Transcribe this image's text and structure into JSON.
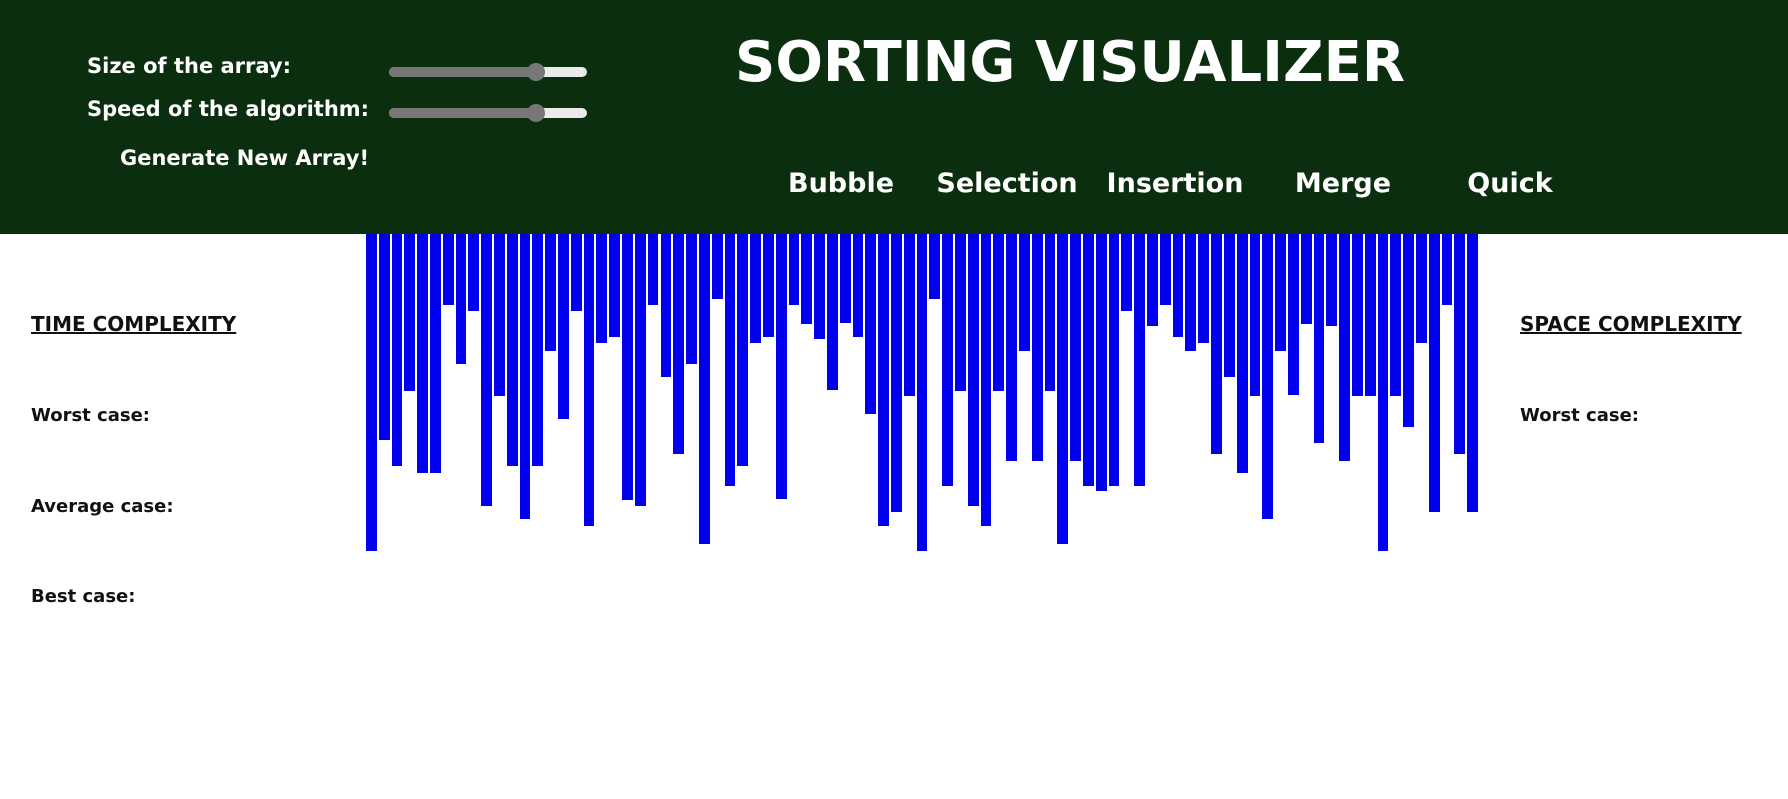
{
  "controls": {
    "size_label": "Size of the array:",
    "speed_label": "Speed of the algorithm:",
    "size_slider_value": 0.74,
    "speed_slider_value": 0.74,
    "generate_label": "Generate New Array!"
  },
  "header": {
    "title": "SORTING VISUALIZER",
    "algorithms": [
      {
        "label": "Bubble"
      },
      {
        "label": "Selection"
      },
      {
        "label": "Insertion"
      },
      {
        "label": "Merge"
      },
      {
        "label": "Quick"
      }
    ]
  },
  "time_complexity": {
    "heading": "TIME COMPLEXITY",
    "worst": "Worst case:",
    "average": "Average case:",
    "best": "Best case:"
  },
  "space_complexity": {
    "heading": "SPACE COMPLEXITY",
    "worst": "Worst case:"
  },
  "colors": {
    "header_bg": "#0b2e0f",
    "bar": "#0000ee"
  },
  "array_values": [
    317,
    206,
    232,
    157,
    239,
    239,
    71,
    130,
    77,
    272,
    162,
    232,
    285,
    232,
    117,
    185,
    77,
    292,
    109,
    103,
    266,
    272,
    71,
    143,
    220,
    130,
    310,
    65,
    252,
    232,
    109,
    103,
    265,
    71,
    90,
    105,
    156,
    89,
    103,
    180,
    292,
    278,
    162,
    317,
    65,
    252,
    157,
    272,
    292,
    157,
    227,
    117,
    227,
    157,
    310,
    227,
    252,
    257,
    252,
    77,
    252,
    92,
    71,
    103,
    117,
    109,
    220,
    143,
    239,
    162,
    285,
    117,
    161,
    90,
    209,
    92,
    227,
    162,
    162,
    317,
    162,
    193,
    109,
    278,
    71,
    220,
    278
  ]
}
